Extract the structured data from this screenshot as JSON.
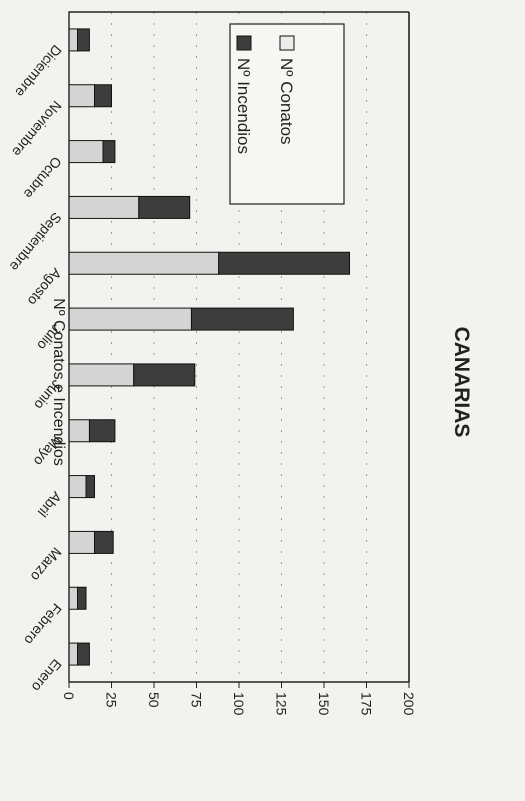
{
  "chart_data": {
    "type": "bar",
    "title": "CANARIAS",
    "ylabel": "Nº Conatos e Incendios",
    "xlabel": "",
    "categories": [
      "Enero",
      "Febrero",
      "Marzo",
      "Abril",
      "Mayo",
      "Junio",
      "Julio",
      "Agosto",
      "Septiembre",
      "Octubre",
      "Noviembre",
      "Diciembre"
    ],
    "series": [
      {
        "name": "Nº Incendios",
        "values": [
          7,
          5,
          11,
          5,
          15,
          36,
          60,
          77,
          30,
          7,
          10,
          7
        ]
      },
      {
        "name": "Nº Conatos",
        "values": [
          5,
          5,
          15,
          10,
          12,
          38,
          72,
          88,
          41,
          20,
          15,
          5
        ]
      }
    ],
    "stacked": true,
    "ylim": [
      0,
      200
    ],
    "yticks": [
      0,
      25,
      50,
      75,
      100,
      125,
      150,
      175,
      200
    ],
    "grid": true,
    "legend_position": "top-right",
    "colors": {
      "Nº Incendios": "#3d3d3d",
      "Nº Conatos": "#d4d4d4"
    }
  }
}
